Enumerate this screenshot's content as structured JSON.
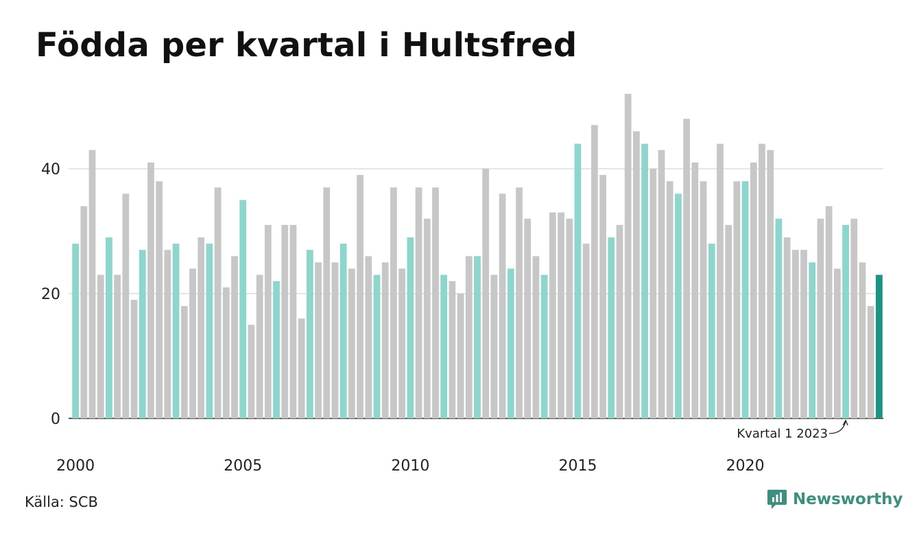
{
  "title": "Födda per kvartal i Hultsfred",
  "source": "Källa: SCB",
  "brand": {
    "name": "Newsworthy",
    "icon": "newsworthy-logo-icon"
  },
  "colors": {
    "q1": "#8dd6cd",
    "other": "#c7c7c7",
    "latest": "#1a9585",
    "grid": "#dddddd",
    "axis": "#222222",
    "brand": "#3d8f7f"
  },
  "chart_data": {
    "type": "bar",
    "x_start": "2000 Q1",
    "values": [
      28,
      34,
      43,
      23,
      29,
      23,
      36,
      19,
      27,
      41,
      38,
      27,
      28,
      18,
      24,
      29,
      28,
      37,
      21,
      26,
      35,
      15,
      23,
      31,
      22,
      31,
      31,
      16,
      27,
      25,
      37,
      25,
      28,
      24,
      39,
      26,
      23,
      25,
      37,
      24,
      29,
      37,
      32,
      37,
      23,
      22,
      20,
      26,
      26,
      40,
      23,
      36,
      24,
      37,
      32,
      26,
      23,
      33,
      33,
      32,
      44,
      28,
      47,
      39,
      29,
      31,
      52,
      46,
      44,
      40,
      43,
      38,
      36,
      48,
      41,
      38,
      28,
      44,
      31,
      38,
      38,
      41,
      44,
      43,
      32,
      29,
      27,
      27,
      25,
      32,
      34,
      24,
      31,
      32,
      25,
      18,
      23
    ],
    "highlight_quarter": 1,
    "xticks": [
      "2000",
      "2005",
      "2010",
      "2015",
      "2020"
    ],
    "xtick_years": [
      2000,
      2005,
      2010,
      2015,
      2020
    ],
    "yticks": [
      0,
      20,
      40
    ],
    "ylim": [
      0,
      52
    ],
    "annotation": {
      "text": "Kvartal 1 2023",
      "index": 92
    },
    "grid": true
  }
}
